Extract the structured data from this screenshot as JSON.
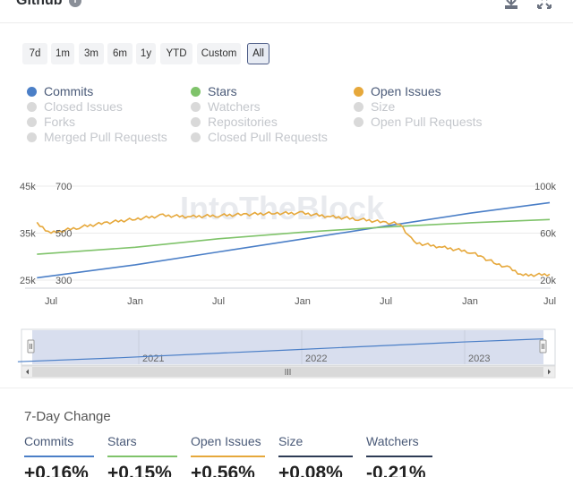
{
  "header": {
    "title": "Github",
    "info_icon": "info-icon",
    "download_icon": "download-icon",
    "expand_icon": "expand-icon"
  },
  "range_buttons": [
    {
      "label": "7d",
      "active": false
    },
    {
      "label": "1m",
      "active": false
    },
    {
      "label": "3m",
      "active": false
    },
    {
      "label": "6m",
      "active": false
    },
    {
      "label": "1y",
      "active": false
    },
    {
      "label": "YTD",
      "active": false
    },
    {
      "label": "Custom",
      "active": false
    },
    {
      "label": "All",
      "active": true
    }
  ],
  "legend": [
    {
      "label": "Commits",
      "color": "#4b7fc7",
      "active": true
    },
    {
      "label": "Stars",
      "color": "#7fc36a",
      "active": true
    },
    {
      "label": "Open Issues",
      "color": "#e6a83b",
      "active": true
    },
    {
      "label": "Closed Issues",
      "color": "#d9d9d9",
      "active": false
    },
    {
      "label": "Watchers",
      "color": "#d9d9d9",
      "active": false
    },
    {
      "label": "Size",
      "color": "#d9d9d9",
      "active": false
    },
    {
      "label": "Forks",
      "color": "#d9d9d9",
      "active": false
    },
    {
      "label": "Repositories",
      "color": "#d9d9d9",
      "active": false
    },
    {
      "label": "Open Pull Requests",
      "color": "#d9d9d9",
      "active": false
    },
    {
      "label": "Merged Pull Requests",
      "color": "#d9d9d9",
      "active": false
    },
    {
      "label": "Closed Pull Requests",
      "color": "#d9d9d9",
      "active": false
    }
  ],
  "watermark": "IntoTheBlock",
  "chart_data": {
    "type": "line",
    "x_tick_labels": [
      "Jul",
      "Jan",
      "Jul",
      "Jan",
      "Jul",
      "Jan",
      "Jul"
    ],
    "x_range": [
      "2020-07",
      "2023-07"
    ],
    "axes": {
      "y_left_outer": {
        "ticks": [
          "45k",
          "35k",
          "25k"
        ],
        "range": [
          25000,
          45000
        ]
      },
      "y_left_inner": {
        "ticks": [
          "700",
          "500",
          "300"
        ],
        "range": [
          300,
          700
        ]
      },
      "y_right": {
        "ticks": [
          "100k",
          "60k",
          "20k"
        ],
        "range": [
          20000,
          100000
        ]
      }
    },
    "grid": true,
    "series": [
      {
        "name": "Commits",
        "color": "#4b7fc7",
        "axis": "y_right",
        "points": [
          [
            "2020-06",
            22000
          ],
          [
            "2021-01",
            33000
          ],
          [
            "2021-07",
            44000
          ],
          [
            "2022-01",
            55000
          ],
          [
            "2022-07",
            66000
          ],
          [
            "2023-01",
            77000
          ],
          [
            "2023-07",
            86000
          ]
        ]
      },
      {
        "name": "Stars",
        "color": "#7fc36a",
        "axis": "y_left_outer",
        "points": [
          [
            "2020-06",
            30500
          ],
          [
            "2021-01",
            32000
          ],
          [
            "2021-07",
            33800
          ],
          [
            "2022-01",
            35200
          ],
          [
            "2022-07",
            36300
          ],
          [
            "2023-01",
            37200
          ],
          [
            "2023-07",
            37900
          ]
        ]
      },
      {
        "name": "Open Issues",
        "color": "#e6a83b",
        "axis": "y_left_inner",
        "points": [
          [
            "2020-06",
            540
          ],
          [
            "2020-07",
            500
          ],
          [
            "2020-09",
            525
          ],
          [
            "2020-11",
            545
          ],
          [
            "2021-01",
            560
          ],
          [
            "2021-03",
            575
          ],
          [
            "2021-05",
            570
          ],
          [
            "2021-07",
            575
          ],
          [
            "2021-09",
            580
          ],
          [
            "2021-11",
            585
          ],
          [
            "2022-01",
            585
          ],
          [
            "2022-03",
            570
          ],
          [
            "2022-05",
            560
          ],
          [
            "2022-07",
            545
          ],
          [
            "2022-08",
            540
          ],
          [
            "2022-09",
            460
          ],
          [
            "2022-11",
            440
          ],
          [
            "2023-01",
            420
          ],
          [
            "2023-02",
            395
          ],
          [
            "2023-03",
            370
          ],
          [
            "2023-04",
            350
          ],
          [
            "2023-05",
            320
          ],
          [
            "2023-07",
            325
          ]
        ]
      }
    ],
    "navigator": {
      "year_labels": [
        "2021",
        "2022",
        "2023"
      ],
      "series": "Commits"
    }
  },
  "seven_day_change": {
    "title": "7-Day Change",
    "items": [
      {
        "label": "Commits",
        "value": "+0.16%",
        "color": "#4b7fc7"
      },
      {
        "label": "Stars",
        "value": "+0.15%",
        "color": "#7fc36a"
      },
      {
        "label": "Open Issues",
        "value": "+0.56%",
        "color": "#e6a83b"
      },
      {
        "label": "Size",
        "value": "+0.08%",
        "color": "#2d3b55"
      },
      {
        "label": "Watchers",
        "value": "-0.21%",
        "color": "#2d3b55"
      }
    ]
  }
}
